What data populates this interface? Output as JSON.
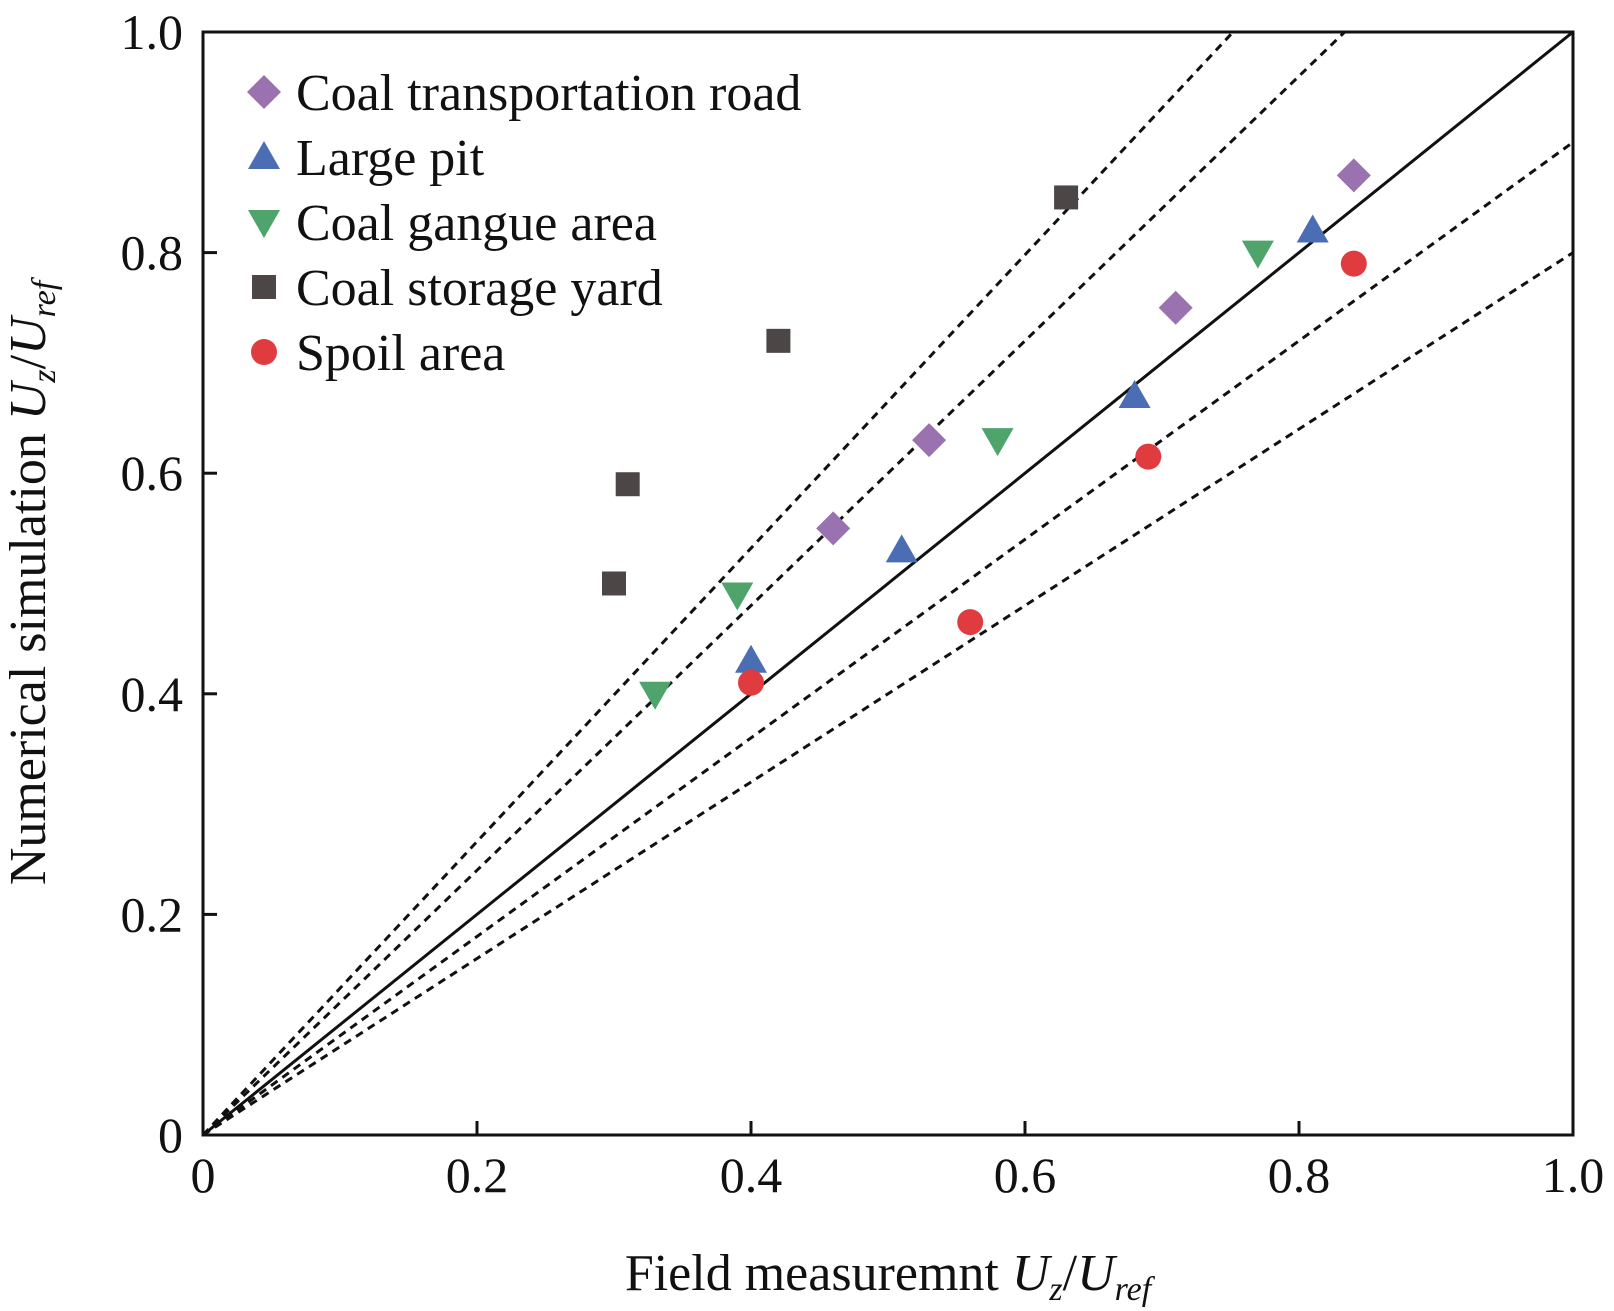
{
  "chart_data": {
    "type": "scatter",
    "xlabel": {
      "text": "Field measuremnt ",
      "sym1": "U",
      "sub1": "z",
      "sep": "/",
      "sym2": "U",
      "sub2": "ref"
    },
    "ylabel": {
      "text": "Numerical simulation ",
      "sym1": "U",
      "sub1": "z",
      "sep": "/",
      "sym2": "U",
      "sub2": "ref"
    },
    "xlim": [
      0,
      1.0
    ],
    "ylim": [
      0,
      1.0
    ],
    "xticks": [
      "0",
      "0.2",
      "0.4",
      "0.6",
      "0.8",
      "1.0"
    ],
    "yticks": [
      "0",
      "0.2",
      "0.4",
      "0.6",
      "0.8",
      "1.0"
    ],
    "grid": false,
    "legend_position": "top-left",
    "reference_lines": [
      {
        "style": "solid",
        "slope": 1.0
      },
      {
        "style": "dotted",
        "slope": 1.33
      },
      {
        "style": "dotted",
        "slope": 1.2
      },
      {
        "style": "dotted",
        "slope": 0.9
      },
      {
        "style": "dotted",
        "slope": 0.8
      }
    ],
    "series": [
      {
        "name": "Coal transportation road",
        "marker": "diamond",
        "color": "#9b72b0",
        "x": [
          0.46,
          0.53,
          0.71,
          0.84
        ],
        "y": [
          0.55,
          0.63,
          0.75,
          0.87
        ]
      },
      {
        "name": "Large pit",
        "marker": "triangle-up",
        "color": "#4a6db3",
        "x": [
          0.4,
          0.51,
          0.68,
          0.81
        ],
        "y": [
          0.43,
          0.53,
          0.67,
          0.82
        ]
      },
      {
        "name": "Coal gangue area",
        "marker": "triangle-down",
        "color": "#4ea46a",
        "x": [
          0.33,
          0.39,
          0.58,
          0.77
        ],
        "y": [
          0.4,
          0.49,
          0.63,
          0.8
        ]
      },
      {
        "name": "Coal storage yard",
        "marker": "square",
        "color": "#4d4646",
        "x": [
          0.3,
          0.31,
          0.42,
          0.63
        ],
        "y": [
          0.5,
          0.59,
          0.72,
          0.85
        ]
      },
      {
        "name": "Spoil area",
        "marker": "circle",
        "color": "#e03c40",
        "x": [
          0.4,
          0.56,
          0.69,
          0.84
        ],
        "y": [
          0.41,
          0.465,
          0.615,
          0.79
        ]
      }
    ]
  }
}
